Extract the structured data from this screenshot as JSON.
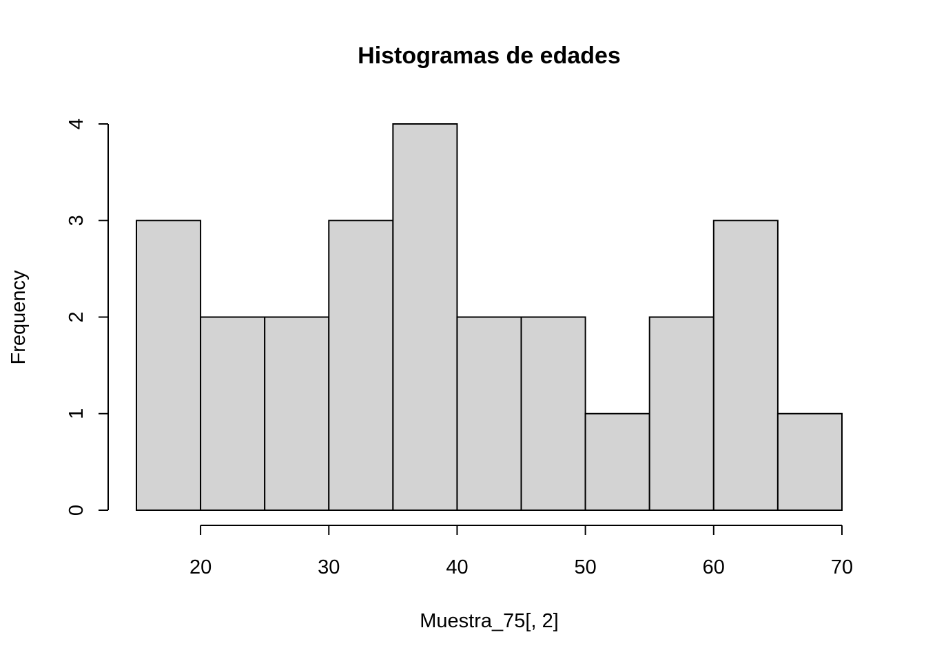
{
  "chart_data": {
    "type": "bar",
    "title": "Histogramas de edades",
    "xlabel": "Muestra_75[, 2]",
    "ylabel": "Frequency",
    "bins": [
      {
        "from": 15,
        "to": 20,
        "count": 3
      },
      {
        "from": 20,
        "to": 25,
        "count": 2
      },
      {
        "from": 25,
        "to": 30,
        "count": 2
      },
      {
        "from": 30,
        "to": 35,
        "count": 3
      },
      {
        "from": 35,
        "to": 40,
        "count": 4
      },
      {
        "from": 40,
        "to": 45,
        "count": 2
      },
      {
        "from": 45,
        "to": 50,
        "count": 2
      },
      {
        "from": 50,
        "to": 55,
        "count": 1
      },
      {
        "from": 55,
        "to": 60,
        "count": 2
      },
      {
        "from": 60,
        "to": 65,
        "count": 3
      },
      {
        "from": 65,
        "to": 70,
        "count": 1
      }
    ],
    "x_ticks": [
      20,
      30,
      40,
      50,
      60,
      70
    ],
    "y_ticks": [
      0,
      1,
      2,
      3,
      4
    ],
    "xlim": [
      15,
      70
    ],
    "ylim": [
      0,
      4
    ],
    "grid": false,
    "colors": {
      "bar_fill": "#d3d3d3",
      "bar_stroke": "#000000"
    }
  }
}
